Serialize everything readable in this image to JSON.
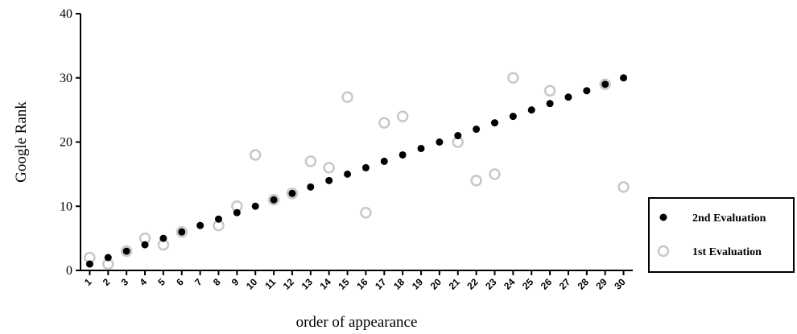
{
  "chart_data": {
    "type": "scatter",
    "title": "",
    "xlabel": "order of appearance",
    "ylabel": "Google Rank",
    "x": [
      1,
      2,
      3,
      4,
      5,
      6,
      7,
      8,
      9,
      10,
      11,
      12,
      13,
      14,
      15,
      16,
      17,
      18,
      19,
      20,
      21,
      22,
      23,
      24,
      25,
      26,
      27,
      28,
      29,
      30
    ],
    "x_tick_labels": [
      "1",
      "2",
      "3",
      "4",
      "5",
      "6",
      "7",
      "8",
      "9",
      "10",
      "11",
      "12",
      "13",
      "14",
      "15",
      "16",
      "17",
      "18",
      "19",
      "20",
      "21",
      "22",
      "23",
      "24",
      "25",
      "26",
      "27",
      "28",
      "29",
      "30"
    ],
    "y_ticks": [
      "0",
      "10",
      "20",
      "30",
      "40"
    ],
    "ylim": [
      0,
      40
    ],
    "xlim": [
      0.5,
      30.5
    ],
    "grid": false,
    "legend_position": "right",
    "series": [
      {
        "name": "2nd Evaluation",
        "marker": "filled-circle",
        "color": "#000000",
        "values": [
          1,
          2,
          3,
          4,
          5,
          6,
          7,
          8,
          9,
          10,
          11,
          12,
          13,
          14,
          15,
          16,
          17,
          18,
          19,
          20,
          21,
          22,
          23,
          24,
          25,
          26,
          27,
          28,
          29,
          30
        ]
      },
      {
        "name": "1st Evaluation",
        "marker": "open-circle",
        "color": "#c8c8c8",
        "values": [
          2,
          1,
          3,
          5,
          4,
          6,
          null,
          7,
          10,
          18,
          11,
          12,
          17,
          16,
          27,
          9,
          23,
          24,
          null,
          null,
          20,
          14,
          15,
          30,
          null,
          28,
          null,
          null,
          29,
          13
        ]
      }
    ]
  }
}
